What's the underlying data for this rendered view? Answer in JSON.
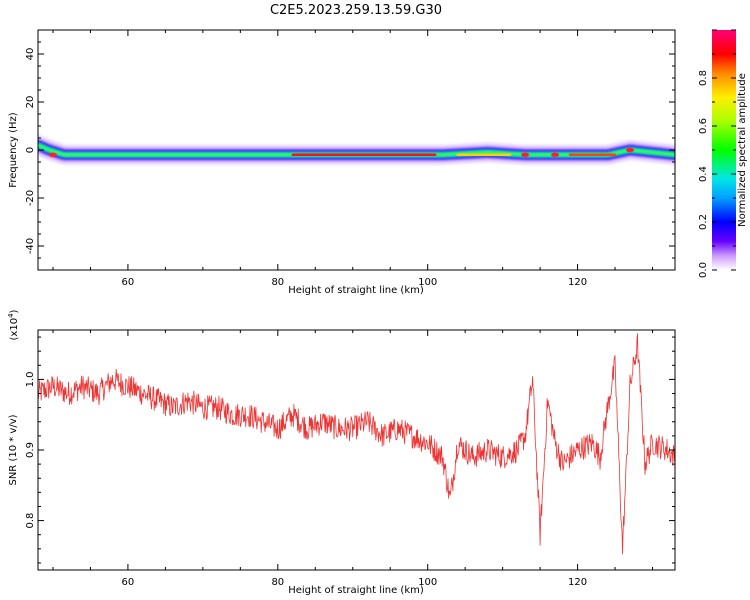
{
  "title": "C2E5.2023.259.13.59.G30",
  "chart_data": [
    {
      "type": "heatmap",
      "xlabel": "Height of straight line (km)",
      "ylabel": "Frequency (Hz)",
      "xlim": [
        48,
        133
      ],
      "ylim": [
        -50,
        50
      ],
      "xticks": [
        60,
        80,
        100,
        120
      ],
      "yticks": [
        40,
        20,
        0,
        -20,
        -40
      ],
      "ridge_points": [
        {
          "x": 48.0,
          "y": 2
        },
        {
          "x": 49.5,
          "y": 0
        },
        {
          "x": 51.5,
          "y": -2
        },
        {
          "x": 56,
          "y": -2
        },
        {
          "x": 70,
          "y": -2
        },
        {
          "x": 80,
          "y": -2
        },
        {
          "x": 85,
          "y": -2
        },
        {
          "x": 100,
          "y": -2
        },
        {
          "x": 102,
          "y": -2
        },
        {
          "x": 108,
          "y": -1
        },
        {
          "x": 113,
          "y": -2
        },
        {
          "x": 118,
          "y": -2
        },
        {
          "x": 124,
          "y": -2
        },
        {
          "x": 127,
          "y": 0
        },
        {
          "x": 133,
          "y": -2
        }
      ],
      "colorbar": {
        "label": "Normalized spectral amplitude",
        "ticks": [
          0.0,
          0.2,
          0.4,
          0.6,
          0.8
        ],
        "range": [
          0,
          1
        ]
      }
    },
    {
      "type": "line",
      "xlabel": "Height of straight line (km)",
      "ylabel": "SNR (10 * v/v)",
      "multiplier": "(x10",
      "multiplier_exp": "4",
      "multiplier_close": ")",
      "xlim": [
        48,
        133
      ],
      "ylim": [
        0.73,
        1.07
      ],
      "xticks": [
        60,
        80,
        100,
        120
      ],
      "yticks": [
        1.0,
        0.9,
        0.8
      ],
      "color": "#ee3333",
      "series": [
        {
          "x": [
            48,
            50,
            52,
            54,
            56,
            58,
            60,
            62,
            64,
            66,
            68,
            70,
            72,
            74,
            76,
            78,
            80,
            82,
            84,
            86,
            88,
            90,
            92,
            94,
            96,
            98,
            100,
            101,
            102,
            103,
            104,
            105,
            106,
            108,
            110,
            112,
            113,
            114,
            115,
            116,
            117,
            118,
            120,
            122,
            123,
            124,
            125,
            126,
            127,
            128,
            129,
            130,
            132,
            133
          ],
          "y": [
            0.98,
            0.99,
            0.98,
            0.99,
            0.98,
            1.0,
            0.99,
            0.98,
            0.97,
            0.96,
            0.97,
            0.96,
            0.96,
            0.95,
            0.95,
            0.94,
            0.93,
            0.95,
            0.93,
            0.94,
            0.93,
            0.93,
            0.94,
            0.92,
            0.93,
            0.92,
            0.91,
            0.9,
            0.89,
            0.83,
            0.91,
            0.9,
            0.89,
            0.9,
            0.89,
            0.9,
            0.92,
            1.0,
            0.78,
            0.97,
            0.91,
            0.88,
            0.9,
            0.91,
            0.89,
            0.96,
            1.02,
            0.76,
            0.99,
            1.05,
            0.88,
            0.91,
            0.9,
            0.89
          ]
        }
      ]
    }
  ]
}
